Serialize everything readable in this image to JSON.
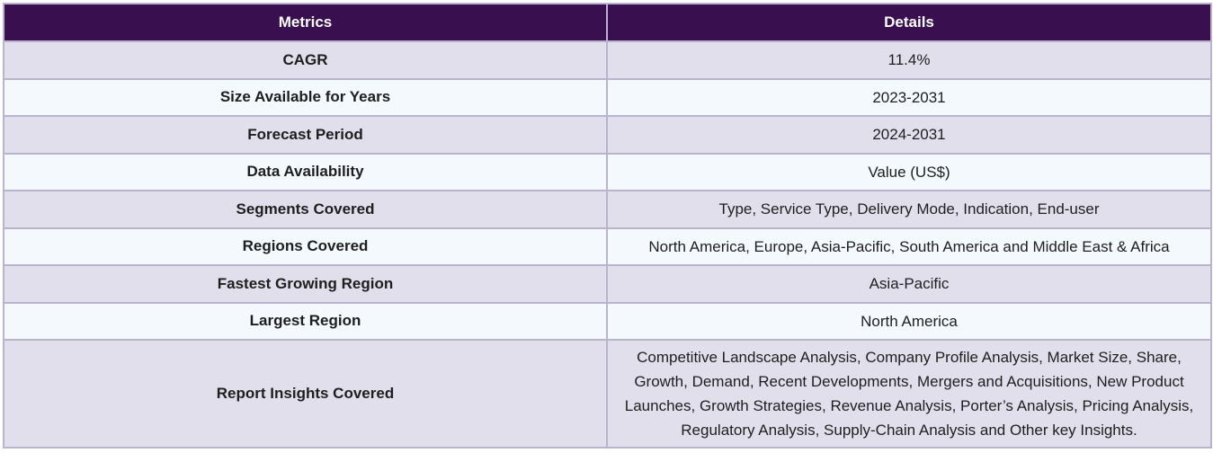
{
  "table": {
    "headers": [
      "Metrics",
      "Details"
    ],
    "rows": [
      {
        "metric": "CAGR",
        "detail": "11.4%"
      },
      {
        "metric": "Size Available for Years",
        "detail": "2023-2031"
      },
      {
        "metric": "Forecast Period",
        "detail": "2024-2031"
      },
      {
        "metric": "Data Availability",
        "detail": "Value (US$)"
      },
      {
        "metric": "Segments Covered",
        "detail": "Type, Service Type, Delivery Mode, Indication, End-user"
      },
      {
        "metric": "Regions Covered",
        "detail": "North America, Europe, Asia-Pacific, South America and Middle East & Africa"
      },
      {
        "metric": "Fastest Growing Region",
        "detail": "Asia-Pacific"
      },
      {
        "metric": "Largest Region",
        "detail": "North America"
      },
      {
        "metric": "Report Insights Covered",
        "detail": "Competitive Landscape Analysis, Company Profile Analysis, Market Size, Share, Growth, Demand, Recent Developments, Mergers and Acquisitions, New Product Launches, Growth Strategies, Revenue Analysis, Porter’s Analysis, Pricing Analysis, Regulatory Analysis, Supply-Chain Analysis and Other key Insights."
      }
    ]
  },
  "colors": {
    "header_bg": "#3a0f4f",
    "row_odd_bg": "#e2dfec",
    "row_even_bg": "#f4f9fd",
    "border": "#b9b3cf"
  }
}
